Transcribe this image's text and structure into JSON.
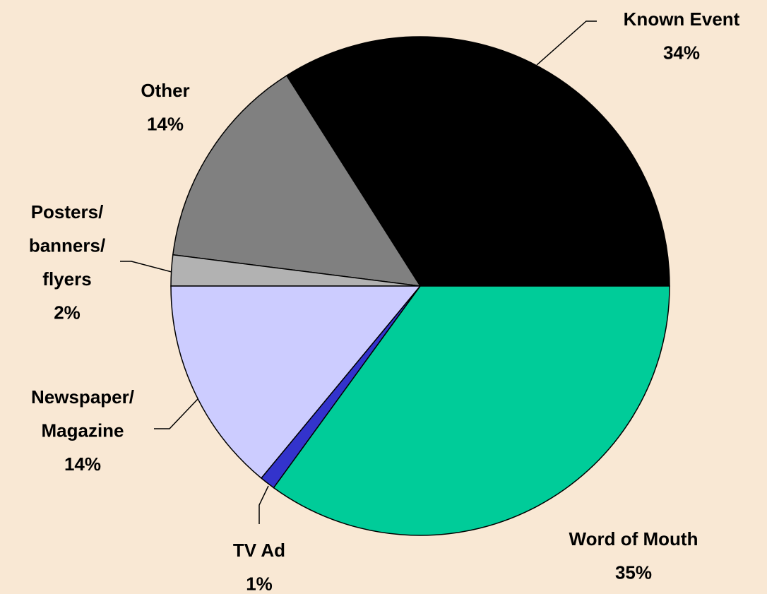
{
  "chart_data": {
    "type": "pie",
    "categories": [
      "Known Event",
      "Other",
      "Posters/banners/flyers",
      "Newspaper/Magazine",
      "TV Ad",
      "Word of Mouth"
    ],
    "values": [
      34,
      14,
      2,
      14,
      1,
      35
    ],
    "value_labels": [
      "34%",
      "14%",
      "2%",
      "14%",
      "1%",
      "35%"
    ],
    "colors": [
      "#000000",
      "#808080",
      "#b2b2b2",
      "#ccccff",
      "#3333cc",
      "#00cc99"
    ]
  }
}
